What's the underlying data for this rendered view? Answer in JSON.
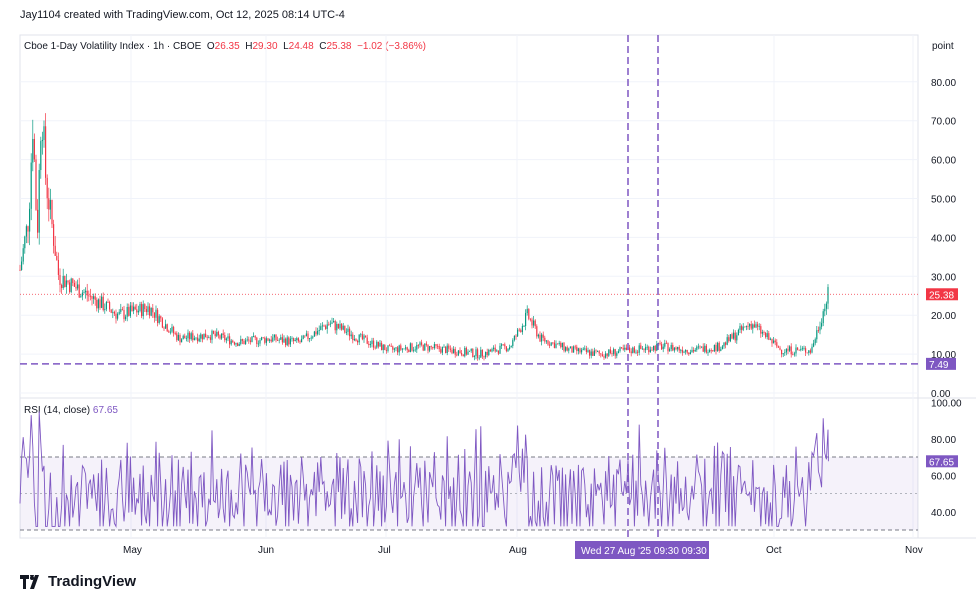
{
  "header": "Jay1104 created with TradingView.com, Oct 12, 2025 08:14 UTC-4",
  "legend": {
    "symbol": "Cboe 1-Day Volatility Index · 1h · CBOE",
    "o_label": "O",
    "o": "26.35",
    "h_label": "H",
    "h": "29.30",
    "l_label": "L",
    "l": "24.48",
    "c_label": "C",
    "c": "25.38",
    "change": "−1.02 (−3.86%)"
  },
  "rsi": {
    "label": "RSI (14, close)",
    "value": "67.65"
  },
  "price_axis_unit": "point",
  "crosshair_label": "Wed 27 Aug '25   09:30   09:30",
  "brand": "TradingView",
  "colors": {
    "up": "#089981",
    "down": "#f23645",
    "rsi": "#7e57c2",
    "marker": "#7e57c2"
  },
  "chart_data": {
    "type": "candlestick",
    "interval": "1h",
    "ylim": [
      0,
      85
    ],
    "yticks": [
      "0.00",
      "10.00",
      "20.00",
      "30.00",
      "40.00",
      "50.00",
      "60.00",
      "70.00",
      "80.00"
    ],
    "xticks": [
      "May",
      "Jun",
      "Jul",
      "Aug",
      "Oct",
      "Nov"
    ],
    "last_price": "25.38",
    "horizontal_line": "7.49",
    "approx_closes": [
      [
        "Apr 4",
        25
      ],
      [
        "Apr 7",
        45
      ],
      [
        "Apr 8",
        70
      ],
      [
        "Apr 9",
        40
      ],
      [
        "Apr 10",
        75
      ],
      [
        "Apr 11",
        55
      ],
      [
        "Apr 14",
        30
      ],
      [
        "Apr 21",
        25
      ],
      [
        "Apr 28",
        20
      ],
      [
        "May 5",
        22
      ],
      [
        "May 12",
        14
      ],
      [
        "May 19",
        15
      ],
      [
        "May 26",
        13
      ],
      [
        "Jun 2",
        14
      ],
      [
        "Jun 9",
        13
      ],
      [
        "Jun 16",
        18
      ],
      [
        "Jun 23",
        14
      ],
      [
        "Jun 30",
        11
      ],
      [
        "Jul 7",
        12
      ],
      [
        "Jul 14",
        11
      ],
      [
        "Jul 21",
        10
      ],
      [
        "Jul 28",
        12
      ],
      [
        "Aug 1",
        20
      ],
      [
        "Aug 4",
        14
      ],
      [
        "Aug 11",
        11
      ],
      [
        "Aug 18",
        10
      ],
      [
        "Aug 25",
        11
      ],
      [
        "Sep 1",
        12
      ],
      [
        "Sep 8",
        11
      ],
      [
        "Sep 15",
        12
      ],
      [
        "Sep 22",
        18
      ],
      [
        "Sep 29",
        11
      ],
      [
        "Oct 6",
        11
      ],
      [
        "Oct 10",
        25.38
      ]
    ],
    "rsi": {
      "ylim": [
        30,
        100
      ],
      "yticks": [
        "40.00",
        "60.00",
        "80.00",
        "100.00"
      ],
      "bands": [
        30,
        70
      ],
      "last": "67.65"
    }
  }
}
